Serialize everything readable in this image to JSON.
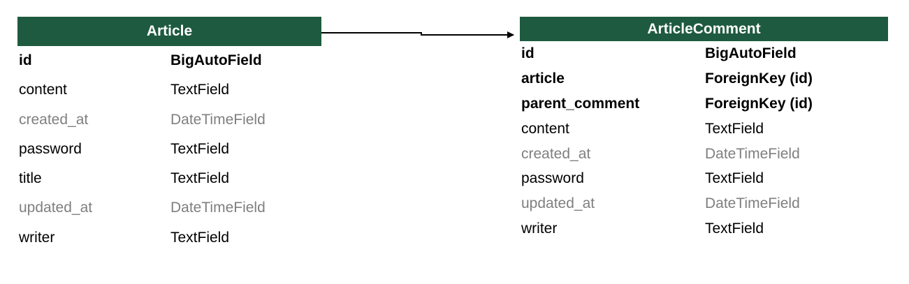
{
  "tables": {
    "article": {
      "name": "Article",
      "header_color": "#1e5a3f",
      "fields": [
        {
          "name": "id",
          "type": "BigAutoField",
          "style": "key"
        },
        {
          "name": "content",
          "type": "TextField",
          "style": "normal"
        },
        {
          "name": "created_at",
          "type": "DateTimeField",
          "style": "auto"
        },
        {
          "name": "password",
          "type": "TextField",
          "style": "normal"
        },
        {
          "name": "title",
          "type": "TextField",
          "style": "normal"
        },
        {
          "name": "updated_at",
          "type": "DateTimeField",
          "style": "auto"
        },
        {
          "name": "writer",
          "type": "TextField",
          "style": "normal"
        }
      ]
    },
    "articlecomment": {
      "name": "ArticleComment",
      "header_color": "#1e5a3f",
      "fields": [
        {
          "name": "id",
          "type": "BigAutoField",
          "style": "key"
        },
        {
          "name": "article",
          "type": "ForeignKey (id)",
          "style": "key"
        },
        {
          "name": "parent_comment",
          "type": "ForeignKey (id)",
          "style": "key"
        },
        {
          "name": "content",
          "type": "TextField",
          "style": "normal"
        },
        {
          "name": "created_at",
          "type": "DateTimeField",
          "style": "auto"
        },
        {
          "name": "password",
          "type": "TextField",
          "style": "normal"
        },
        {
          "name": "updated_at",
          "type": "DateTimeField",
          "style": "auto"
        },
        {
          "name": "writer",
          "type": "TextField",
          "style": "normal"
        }
      ]
    }
  },
  "colors": {
    "key_text": "#000000",
    "normal_text": "#000000",
    "auto_text": "#7f7f7f"
  }
}
